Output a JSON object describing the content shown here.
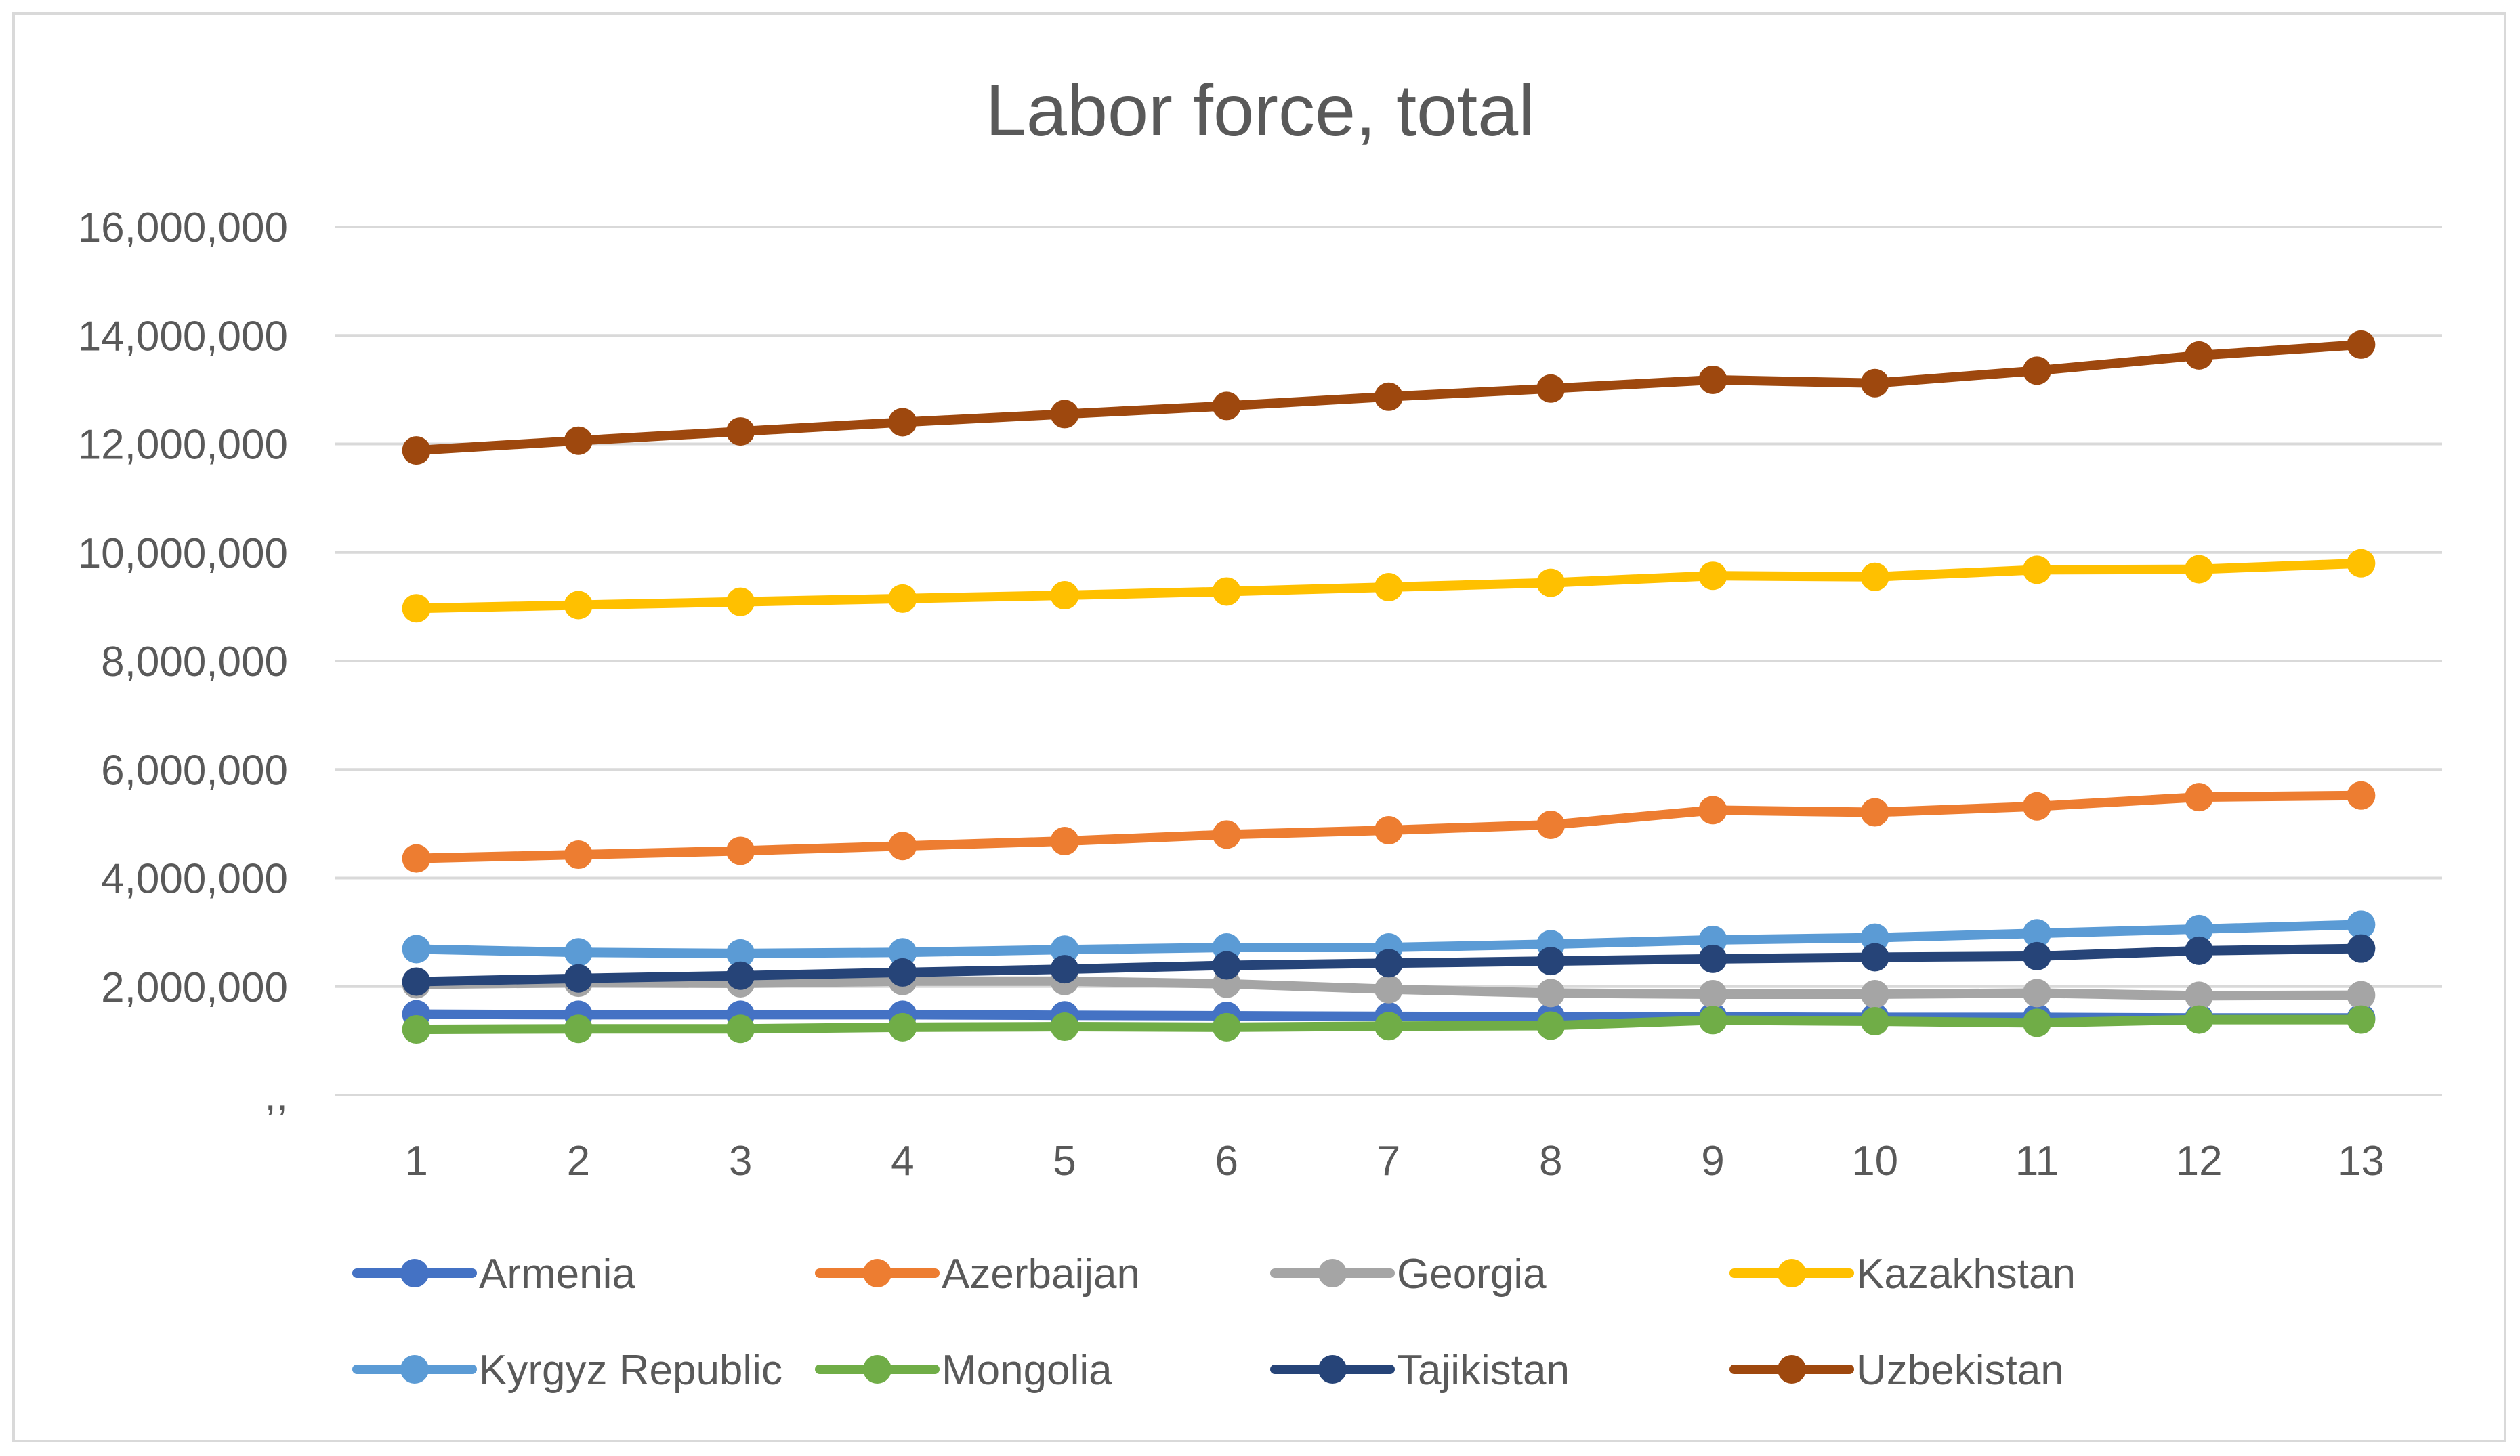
{
  "chart_data": {
    "type": "line",
    "title": "Labor force, total",
    "xlabel": "",
    "ylabel": "",
    "categories": [
      "1",
      "2",
      "3",
      "4",
      "5",
      "6",
      "7",
      "8",
      "9",
      "10",
      "11",
      "12",
      "13"
    ],
    "ylim": [
      0,
      16000000
    ],
    "y_ticks": [
      {
        "value": 0,
        "label": ",,"
      },
      {
        "value": 2000000,
        "label": "2,000,000"
      },
      {
        "value": 4000000,
        "label": "4,000,000"
      },
      {
        "value": 6000000,
        "label": "6,000,000"
      },
      {
        "value": 8000000,
        "label": "8,000,000"
      },
      {
        "value": 10000000,
        "label": "10,000,000"
      },
      {
        "value": 12000000,
        "label": "12,000,000"
      },
      {
        "value": 14000000,
        "label": "14,000,000"
      },
      {
        "value": 16000000,
        "label": "16,000,000"
      }
    ],
    "grid": true,
    "legend_position": "bottom",
    "series": [
      {
        "name": "Armenia",
        "color": "#4472C4",
        "values": [
          1490000,
          1480000,
          1480000,
          1480000,
          1470000,
          1460000,
          1450000,
          1440000,
          1440000,
          1430000,
          1430000,
          1420000,
          1420000
        ]
      },
      {
        "name": "Azerbaijan",
        "color": "#ED7D31",
        "values": [
          4360000,
          4430000,
          4500000,
          4590000,
          4680000,
          4800000,
          4880000,
          4980000,
          5250000,
          5210000,
          5320000,
          5490000,
          5520000
        ]
      },
      {
        "name": "Georgia",
        "color": "#A5A5A5",
        "values": [
          2040000,
          2070000,
          2060000,
          2100000,
          2100000,
          2050000,
          1950000,
          1880000,
          1860000,
          1860000,
          1880000,
          1830000,
          1840000
        ]
      },
      {
        "name": "Kazakhstan",
        "color": "#FFC000",
        "values": [
          8970000,
          9030000,
          9090000,
          9150000,
          9210000,
          9280000,
          9360000,
          9440000,
          9570000,
          9550000,
          9680000,
          9690000,
          9800000
        ]
      },
      {
        "name": "Kyrgyz Republic",
        "color": "#5B9BD5",
        "values": [
          2690000,
          2630000,
          2610000,
          2630000,
          2680000,
          2720000,
          2720000,
          2780000,
          2860000,
          2900000,
          2980000,
          3060000,
          3140000
        ]
      },
      {
        "name": "Mongolia",
        "color": "#70AD47",
        "values": [
          1210000,
          1220000,
          1220000,
          1250000,
          1260000,
          1250000,
          1270000,
          1280000,
          1380000,
          1360000,
          1330000,
          1390000,
          1390000
        ]
      },
      {
        "name": "Tajikistan",
        "color": "#264478",
        "values": [
          2090000,
          2150000,
          2200000,
          2260000,
          2320000,
          2390000,
          2430000,
          2470000,
          2510000,
          2540000,
          2560000,
          2660000,
          2700000
        ]
      },
      {
        "name": "Uzbekistan",
        "color": "#9E480E",
        "values": [
          11880000,
          12060000,
          12230000,
          12400000,
          12550000,
          12700000,
          12870000,
          13020000,
          13180000,
          13120000,
          13350000,
          13630000,
          13830000
        ]
      }
    ]
  }
}
